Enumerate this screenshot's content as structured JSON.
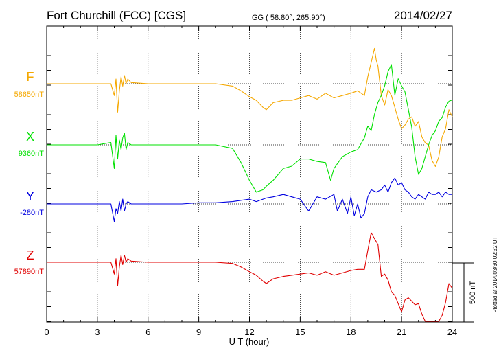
{
  "header": {
    "station": "Fort Churchill (FCC)  [CGS]",
    "coords": "GG ( 58.80°, 265.90°)",
    "date": "2014/02/27"
  },
  "side_note": "Plotted at 2014/03/30 02:32 UT",
  "chart_data": {
    "type": "line",
    "title": "Fort Churchill (FCC)  [CGS]",
    "xlabel": "U T (hour)",
    "xlim": [
      0,
      24
    ],
    "xticks": [
      0,
      3,
      6,
      9,
      12,
      15,
      18,
      21,
      24
    ],
    "grid": true,
    "scale_bar": {
      "label": "500 nT",
      "value_nT": 500
    },
    "series": [
      {
        "name": "F",
        "baseline_label": "58650nT",
        "color": "#f5a800",
        "x": [
          0,
          1,
          2,
          3,
          3.8,
          4.0,
          4.1,
          4.2,
          4.3,
          4.4,
          4.5,
          4.6,
          4.7,
          4.8,
          5,
          6,
          7,
          8,
          9,
          10,
          11,
          11.5,
          12,
          12.4,
          12.8,
          13.0,
          13.4,
          14,
          14.5,
          15,
          15.5,
          16,
          16.5,
          17,
          17.5,
          18,
          18.4,
          18.8,
          19.0,
          19.2,
          19.4,
          19.5,
          19.6,
          19.8,
          20.0,
          20.2,
          20.4,
          20.6,
          20.8,
          21.0,
          21.2,
          21.4,
          21.6,
          21.8,
          22.0,
          22.2,
          22.4,
          22.6,
          22.8,
          23.0,
          23.2,
          23.4,
          23.6,
          23.8,
          24.0
        ],
        "values": [
          0,
          0,
          0,
          0,
          0,
          -100,
          40,
          -240,
          -60,
          60,
          -20,
          70,
          0,
          40,
          10,
          0,
          0,
          0,
          0,
          0,
          -20,
          -60,
          -110,
          -140,
          -200,
          -220,
          -160,
          -140,
          -140,
          -120,
          -100,
          -130,
          -80,
          -120,
          -100,
          -80,
          -60,
          -100,
          60,
          180,
          300,
          200,
          150,
          -100,
          -180,
          -50,
          -100,
          -200,
          -300,
          -380,
          -350,
          -300,
          -280,
          -360,
          -320,
          -450,
          -500,
          -520,
          -650,
          -700,
          -620,
          -450,
          -380,
          -220,
          -280
        ]
      },
      {
        "name": "X",
        "baseline_label": "9360nT",
        "color": "#00e000",
        "x": [
          0,
          1,
          2,
          3,
          3.8,
          4.0,
          4.1,
          4.2,
          4.3,
          4.4,
          4.5,
          4.6,
          4.7,
          4.8,
          5,
          6,
          7,
          8,
          9,
          10,
          11,
          11.5,
          12,
          12.4,
          12.8,
          13.0,
          13.4,
          14,
          14.5,
          15,
          15.5,
          16,
          16.5,
          16.8,
          17,
          17.5,
          18,
          18.4,
          18.8,
          19.0,
          19.2,
          19.4,
          19.6,
          19.8,
          20.0,
          20.2,
          20.4,
          20.6,
          20.8,
          21.0,
          21.2,
          21.4,
          21.6,
          21.8,
          22.0,
          22.2,
          22.4,
          22.6,
          22.8,
          23.0,
          23.2,
          23.4,
          23.6,
          23.8,
          24.0
        ],
        "values": [
          0,
          0,
          0,
          0,
          20,
          -200,
          80,
          -120,
          40,
          -40,
          60,
          100,
          -40,
          20,
          0,
          0,
          0,
          0,
          0,
          0,
          -30,
          -150,
          -300,
          -400,
          -380,
          -350,
          -300,
          -200,
          -180,
          -120,
          -120,
          -140,
          -150,
          -300,
          -200,
          -100,
          -60,
          -40,
          60,
          160,
          120,
          260,
          360,
          420,
          500,
          620,
          680,
          420,
          560,
          500,
          450,
          300,
          150,
          -100,
          -250,
          -200,
          -100,
          0,
          80,
          120,
          200,
          230,
          320,
          370,
          380
        ]
      },
      {
        "name": "Y",
        "baseline_label": "-280nT",
        "color": "#0000e0",
        "x": [
          0,
          1,
          2,
          3,
          3.8,
          4.0,
          4.1,
          4.2,
          4.3,
          4.4,
          4.5,
          4.6,
          4.7,
          4.8,
          5,
          6,
          7,
          8,
          9,
          10,
          11,
          11.5,
          12,
          12.4,
          12.8,
          13.0,
          13.4,
          14,
          14.5,
          15,
          15.5,
          16,
          16.5,
          17,
          17.2,
          17.5,
          17.8,
          18,
          18.2,
          18.4,
          18.6,
          18.8,
          19.0,
          19.2,
          19.5,
          19.8,
          20.0,
          20.2,
          20.4,
          20.6,
          20.8,
          21.0,
          21.2,
          21.4,
          21.6,
          21.8,
          22.0,
          22.2,
          22.4,
          22.6,
          22.8,
          23.0,
          23.2,
          23.4,
          23.6,
          23.8,
          24.0
        ],
        "values": [
          0,
          0,
          0,
          0,
          0,
          -150,
          -40,
          -80,
          20,
          -60,
          40,
          -60,
          0,
          20,
          0,
          0,
          0,
          0,
          10,
          10,
          20,
          30,
          40,
          20,
          40,
          50,
          60,
          80,
          60,
          40,
          -60,
          60,
          40,
          80,
          -60,
          40,
          -80,
          60,
          -100,
          0,
          -120,
          -80,
          60,
          120,
          100,
          120,
          160,
          100,
          180,
          220,
          160,
          180,
          120,
          100,
          60,
          40,
          80,
          60,
          40,
          100,
          80,
          80,
          100,
          60,
          100,
          80,
          80
        ]
      },
      {
        "name": "Z",
        "baseline_label": "57890nT",
        "color": "#e00000",
        "x": [
          0,
          1,
          2,
          3,
          3.8,
          4.0,
          4.1,
          4.2,
          4.3,
          4.4,
          4.5,
          4.6,
          4.7,
          4.8,
          5,
          6,
          7,
          8,
          9,
          10,
          11,
          11.5,
          12,
          12.4,
          12.8,
          13.0,
          13.4,
          14,
          14.5,
          15,
          15.5,
          16,
          16.5,
          17,
          17.5,
          18,
          18.4,
          18.8,
          19.0,
          19.2,
          19.4,
          19.6,
          19.8,
          20.0,
          20.2,
          20.4,
          20.6,
          20.8,
          21.0,
          21.2,
          21.4,
          21.6,
          21.8,
          22.0,
          22.2,
          22.4,
          22.6,
          22.8,
          23.0,
          23.2,
          23.4,
          23.6,
          23.8,
          24.0
        ],
        "values": [
          0,
          0,
          0,
          0,
          0,
          -100,
          30,
          -200,
          -40,
          60,
          -20,
          60,
          0,
          30,
          10,
          0,
          0,
          0,
          0,
          0,
          -10,
          -40,
          -80,
          -110,
          -160,
          -180,
          -140,
          -120,
          -110,
          -100,
          -90,
          -110,
          -80,
          -110,
          -90,
          -70,
          -60,
          -60,
          100,
          250,
          200,
          150,
          -120,
          -100,
          -150,
          -250,
          -280,
          -350,
          -420,
          -320,
          -300,
          -330,
          -360,
          -350,
          -440,
          -500,
          -560,
          -600,
          -650,
          -520,
          -450,
          -340,
          -180,
          -220
        ]
      }
    ]
  }
}
